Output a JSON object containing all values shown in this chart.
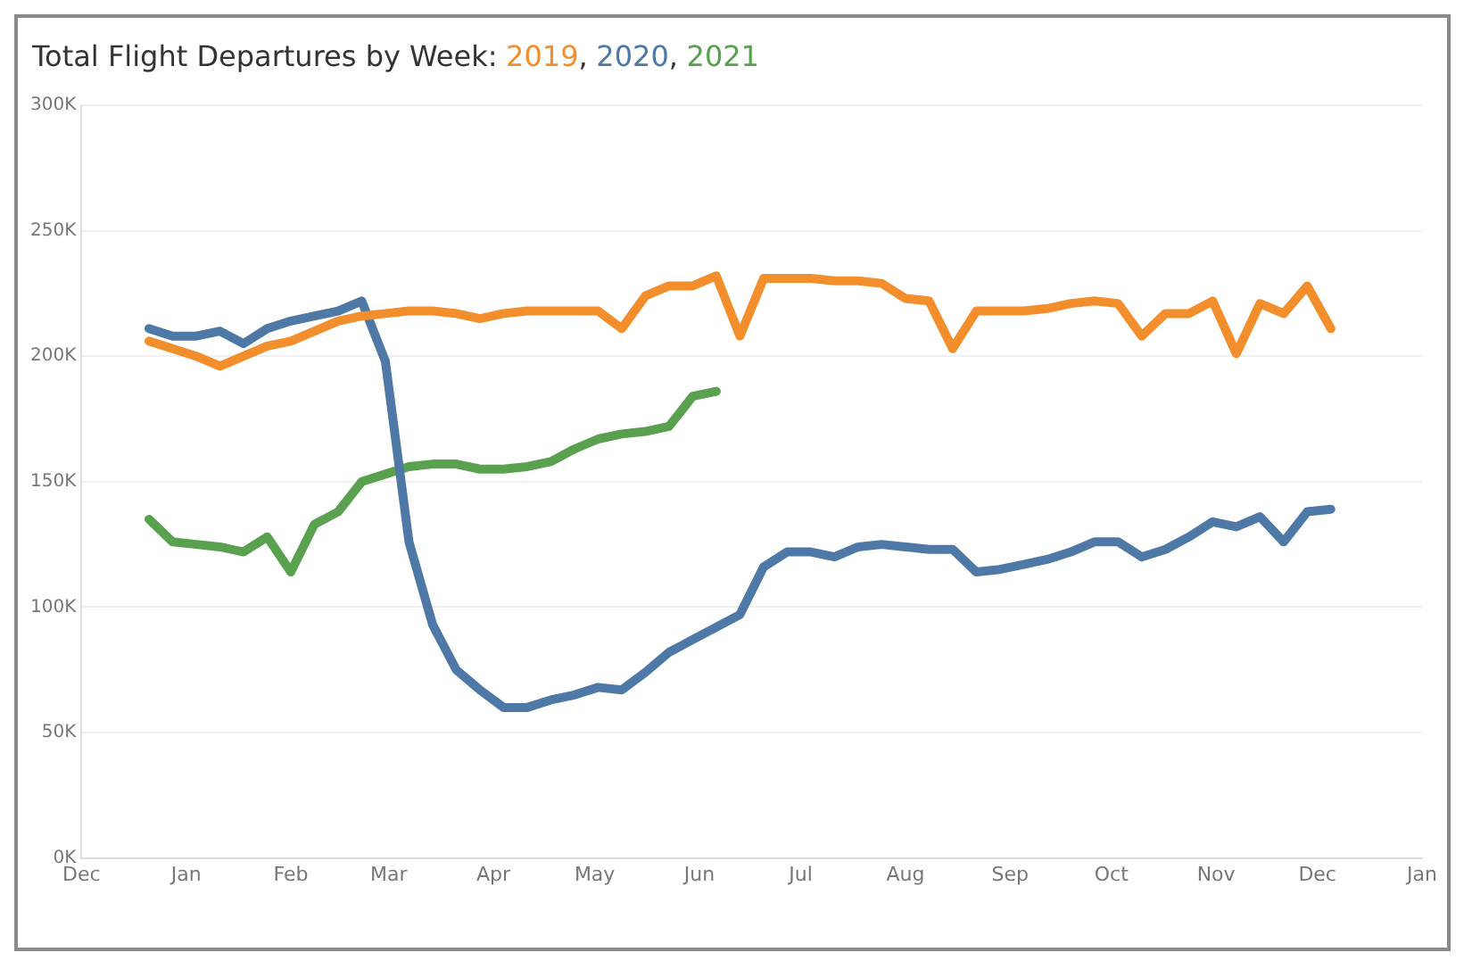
{
  "chart_data": {
    "type": "line",
    "title": "Total Flight Departures by Week:",
    "legend": "top left",
    "annotations": [
      ",",
      ","
    ],
    "grid": "y",
    "marker": "none",
    "line_style": "solid",
    "x": [
      "2019-12-21",
      "2019-12-28",
      "2020-01-04",
      "2020-01-11",
      "2020-01-18",
      "2020-01-25",
      "2020-02-01",
      "2020-02-08",
      "2020-02-15",
      "2020-02-22",
      "2020-02-29",
      "2020-03-07",
      "2020-03-14",
      "2020-03-21",
      "2020-03-28",
      "2020-04-04",
      "2020-04-11",
      "2020-04-18",
      "2020-04-25",
      "2020-05-02",
      "2020-05-09",
      "2020-05-16",
      "2020-05-23",
      "2020-05-30",
      "2020-06-06",
      "2020-06-13",
      "2020-06-20",
      "2020-06-27",
      "2020-07-04",
      "2020-07-11",
      "2020-07-18",
      "2020-07-25",
      "2020-08-01",
      "2020-08-08",
      "2020-08-15",
      "2020-08-22",
      "2020-08-29",
      "2020-09-05",
      "2020-09-12",
      "2020-09-19",
      "2020-09-26",
      "2020-10-03",
      "2020-10-10",
      "2020-10-17",
      "2020-10-24",
      "2020-10-31",
      "2020-11-07",
      "2020-11-14",
      "2020-11-21",
      "2020-11-28",
      "2020-12-05"
    ],
    "xlim": [
      "2019-12-01",
      "2021-01-01"
    ],
    "xticks": [
      {
        "value": "2019-12-01",
        "label": "Dec"
      },
      {
        "value": "2020-01-01",
        "label": "Jan"
      },
      {
        "value": "2020-02-01",
        "label": "Feb"
      },
      {
        "value": "2020-03-01",
        "label": "Mar"
      },
      {
        "value": "2020-04-01",
        "label": "Apr"
      },
      {
        "value": "2020-05-01",
        "label": "May"
      },
      {
        "value": "2020-06-01",
        "label": "Jun"
      },
      {
        "value": "2020-07-01",
        "label": "Jul"
      },
      {
        "value": "2020-08-01",
        "label": "Aug"
      },
      {
        "value": "2020-09-01",
        "label": "Sep"
      },
      {
        "value": "2020-10-01",
        "label": "Oct"
      },
      {
        "value": "2020-11-01",
        "label": "Nov"
      },
      {
        "value": "2020-12-01",
        "label": "Dec"
      },
      {
        "value": "2021-01-01",
        "label": "Jan"
      }
    ],
    "ylim": [
      0,
      300
    ],
    "yticks": [
      {
        "value": 0,
        "label": "0K"
      },
      {
        "value": 50,
        "label": "50K"
      },
      {
        "value": 100,
        "label": "100K"
      },
      {
        "value": 150,
        "label": "150K"
      },
      {
        "value": 200,
        "label": "200K"
      },
      {
        "value": 250,
        "label": "250K"
      },
      {
        "value": 300,
        "label": "300K"
      }
    ],
    "series": [
      {
        "name": "2019",
        "color": "#f28e2b",
        "values": [
          206,
          203,
          200,
          196,
          200,
          204,
          206,
          210,
          214,
          216,
          217,
          218,
          218,
          217,
          215,
          217,
          218,
          218,
          218,
          218,
          211,
          224,
          228,
          228,
          232,
          208,
          231,
          231,
          231,
          230,
          230,
          229,
          223,
          222,
          203,
          218,
          218,
          218,
          219,
          221,
          222,
          221,
          208,
          217,
          217,
          222,
          201,
          221,
          217,
          228,
          211
        ]
      },
      {
        "name": "2020",
        "color": "#4e79a7",
        "values": [
          211,
          208,
          208,
          210,
          205,
          211,
          214,
          216,
          218,
          222,
          198,
          126,
          93,
          75,
          67,
          60,
          60,
          63,
          65,
          68,
          67,
          74,
          82,
          87,
          92,
          97,
          116,
          122,
          122,
          120,
          124,
          125,
          124,
          123,
          123,
          114,
          115,
          117,
          119,
          122,
          126,
          126,
          120,
          123,
          128,
          134,
          132,
          136,
          126,
          138,
          139
        ]
      },
      {
        "name": "2021",
        "color": "#59a14f",
        "x": [
          "2019-12-21",
          "2019-12-28",
          "2020-01-04",
          "2020-01-11",
          "2020-01-18",
          "2020-01-25",
          "2020-02-01",
          "2020-02-08",
          "2020-02-15",
          "2020-02-22",
          "2020-02-29",
          "2020-03-07",
          "2020-03-14",
          "2020-03-21",
          "2020-03-28",
          "2020-04-04",
          "2020-04-11",
          "2020-04-18",
          "2020-04-25",
          "2020-05-02",
          "2020-05-09",
          "2020-05-16",
          "2020-05-23",
          "2020-05-30",
          "2020-06-06"
        ],
        "values": [
          135,
          126,
          125,
          124,
          122,
          128,
          114,
          133,
          138,
          150,
          153,
          156,
          157,
          157,
          155,
          155,
          156,
          158,
          163,
          167,
          169,
          170,
          172,
          184,
          186
        ]
      }
    ]
  }
}
